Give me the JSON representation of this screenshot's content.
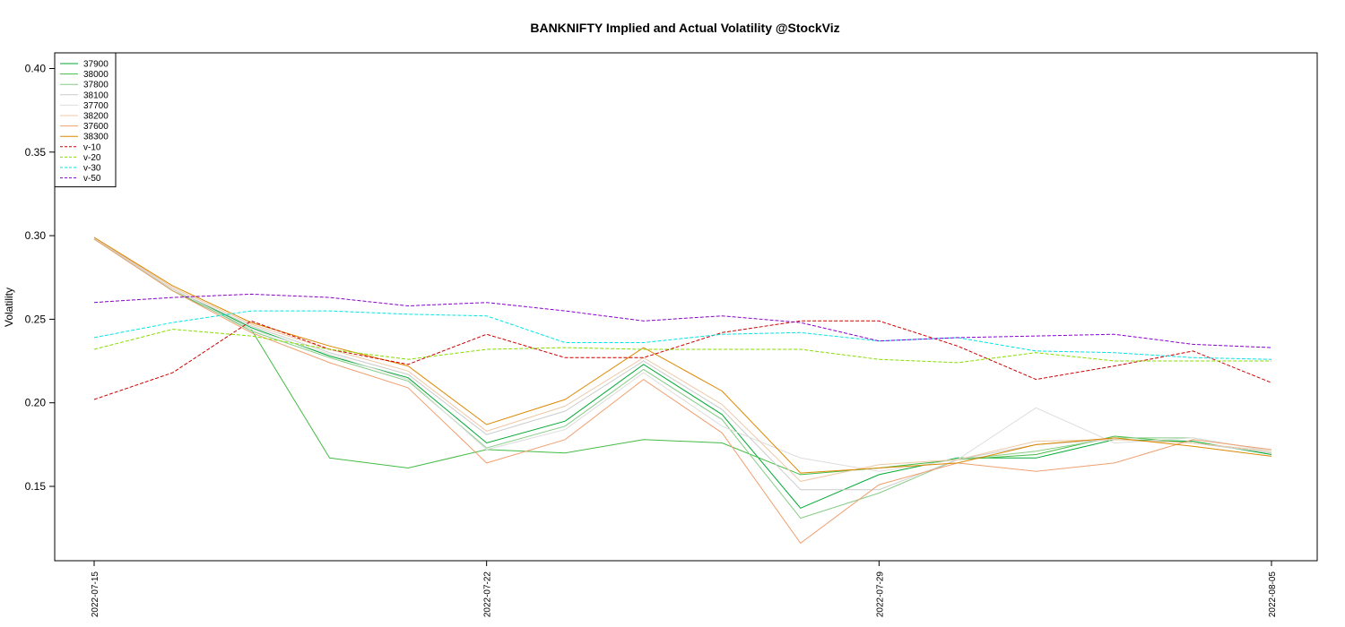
{
  "chart_data": {
    "type": "line",
    "title": "BANKNIFTY Implied and Actual Volatility @StockViz",
    "xlabel": "",
    "ylabel": "Volatility",
    "x": [
      "2022-07-15",
      "2022-07-18",
      "2022-07-19",
      "2022-07-20",
      "2022-07-21",
      "2022-07-22",
      "2022-07-25",
      "2022-07-26",
      "2022-07-27",
      "2022-07-28",
      "2022-07-29",
      "2022-08-01",
      "2022-08-02",
      "2022-08-03",
      "2022-08-04",
      "2022-08-05"
    ],
    "x_tick_labels": [
      "2022-07-15",
      "2022-07-22",
      "2022-07-29",
      "2022-08-05"
    ],
    "y_ticks": [
      "0.15",
      "0.20",
      "0.25",
      "0.30",
      "0.35",
      "0.40"
    ],
    "ylim": [
      0.11,
      0.41
    ],
    "grid": false,
    "legend_position": "top-left",
    "series": [
      {
        "name": "37900",
        "color": "#00aa33",
        "dash": false,
        "values": [
          0.298,
          0.268,
          0.245,
          0.228,
          0.215,
          0.176,
          0.189,
          0.223,
          0.193,
          0.137,
          0.157,
          0.167,
          0.167,
          0.178,
          0.177,
          0.169
        ]
      },
      {
        "name": "38000",
        "color": "#44bb44",
        "dash": false,
        "values": [
          0.298,
          0.267,
          0.244,
          0.167,
          0.161,
          0.172,
          0.17,
          0.178,
          0.176,
          0.157,
          0.161,
          0.166,
          0.169,
          0.18,
          0.176,
          0.17
        ]
      },
      {
        "name": "37800",
        "color": "#88cc88",
        "dash": false,
        "values": [
          0.298,
          0.268,
          0.243,
          0.227,
          0.213,
          0.173,
          0.186,
          0.22,
          0.19,
          0.131,
          0.146,
          0.166,
          0.171,
          0.179,
          0.179,
          0.171
        ]
      },
      {
        "name": "38100",
        "color": "#cccccc",
        "dash": false,
        "values": [
          0.299,
          0.268,
          0.246,
          0.23,
          0.217,
          0.181,
          0.195,
          0.225,
          0.196,
          0.148,
          0.148,
          0.166,
          0.175,
          0.178,
          0.176,
          0.17
        ]
      },
      {
        "name": "37700",
        "color": "#dddddd",
        "dash": false,
        "values": [
          0.298,
          0.268,
          0.244,
          0.229,
          0.214,
          0.172,
          0.184,
          0.218,
          0.186,
          0.167,
          0.159,
          0.166,
          0.197,
          0.176,
          0.179,
          0.171
        ]
      },
      {
        "name": "38200",
        "color": "#eec9a8",
        "dash": false,
        "values": [
          0.299,
          0.269,
          0.247,
          0.232,
          0.219,
          0.183,
          0.198,
          0.227,
          0.199,
          0.153,
          0.163,
          0.166,
          0.177,
          0.178,
          0.176,
          0.171
        ]
      },
      {
        "name": "37600",
        "color": "#f0a070",
        "dash": false,
        "values": [
          0.298,
          0.267,
          0.242,
          0.224,
          0.209,
          0.164,
          0.178,
          0.214,
          0.182,
          0.116,
          0.151,
          0.164,
          0.159,
          0.164,
          0.178,
          0.172
        ]
      },
      {
        "name": "38300",
        "color": "#dd8800",
        "dash": false,
        "values": [
          0.299,
          0.27,
          0.248,
          0.234,
          0.222,
          0.187,
          0.202,
          0.233,
          0.207,
          0.158,
          0.161,
          0.164,
          0.175,
          0.179,
          0.174,
          0.168
        ]
      },
      {
        "name": "v-10",
        "color": "#cc0000",
        "dash": true,
        "values": [
          0.202,
          0.218,
          0.249,
          0.232,
          0.223,
          0.241,
          0.227,
          0.227,
          0.242,
          0.249,
          0.249,
          0.234,
          0.214,
          0.222,
          0.231,
          0.212
        ]
      },
      {
        "name": "v-20",
        "color": "#88dd00",
        "dash": true,
        "values": [
          0.232,
          0.244,
          0.24,
          0.232,
          0.226,
          0.232,
          0.233,
          0.232,
          0.232,
          0.232,
          0.226,
          0.224,
          0.23,
          0.225,
          0.225,
          0.225
        ]
      },
      {
        "name": "v-30",
        "color": "#00e5e5",
        "dash": true,
        "values": [
          0.239,
          0.248,
          0.255,
          0.255,
          0.253,
          0.252,
          0.236,
          0.236,
          0.241,
          0.242,
          0.237,
          0.239,
          0.231,
          0.23,
          0.227,
          0.226
        ]
      },
      {
        "name": "v-50",
        "color": "#8800cc",
        "dash": true,
        "values": [
          0.26,
          0.263,
          0.265,
          0.263,
          0.258,
          0.26,
          0.255,
          0.249,
          0.252,
          0.248,
          0.237,
          0.239,
          0.24,
          0.241,
          0.235,
          0.233
        ]
      }
    ]
  }
}
